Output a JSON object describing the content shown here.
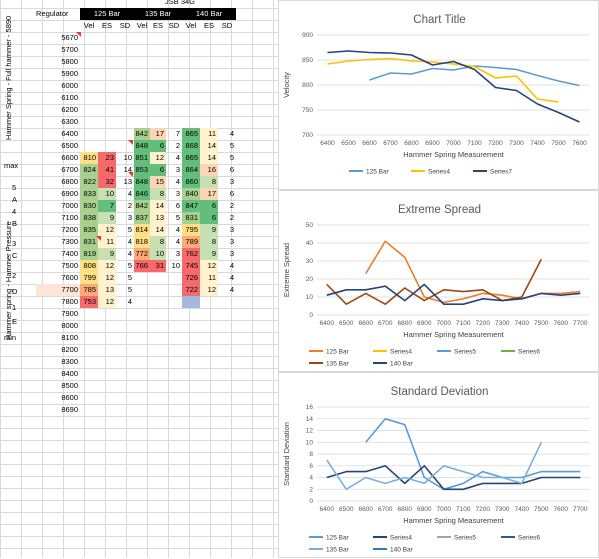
{
  "spreadsheet": {
    "header": {
      "regulator_label": "Regulator",
      "group_top": "JSB 34G",
      "groups": [
        "125 Bar",
        "135 Bar",
        "140 Bar"
      ],
      "subcols": [
        "Vel",
        "ES",
        "SD"
      ]
    },
    "side_labels": {
      "left_vertical": "Hammer spring - Hammer Pressure",
      "left_vertical2": "Hammer Spring - Full hammer - 5890",
      "markers": [
        "max",
        "5",
        "A",
        "4",
        "B",
        "3",
        "C",
        "2",
        "D",
        "1",
        "E",
        "min"
      ]
    },
    "rows": [
      {
        "rpm": "5670",
        "g1": [
          "",
          "",
          ""
        ],
        "g2": [
          "",
          "",
          ""
        ],
        "g3": [
          "",
          "",
          ""
        ]
      },
      {
        "rpm": "5700",
        "g1": [
          "",
          "",
          ""
        ],
        "g2": [
          "",
          "",
          ""
        ],
        "g3": [
          "",
          "",
          ""
        ]
      },
      {
        "rpm": "5800",
        "g1": [
          "",
          "",
          ""
        ],
        "g2": [
          "",
          "",
          ""
        ],
        "g3": [
          "",
          "",
          ""
        ]
      },
      {
        "rpm": "5900",
        "g1": [
          "",
          "",
          ""
        ],
        "g2": [
          "",
          "",
          ""
        ],
        "g3": [
          "",
          "",
          ""
        ]
      },
      {
        "rpm": "6000",
        "g1": [
          "",
          "",
          ""
        ],
        "g2": [
          "",
          "",
          ""
        ],
        "g3": [
          "",
          "",
          ""
        ]
      },
      {
        "rpm": "6100",
        "g1": [
          "",
          "",
          ""
        ],
        "g2": [
          "",
          "",
          ""
        ],
        "g3": [
          "",
          "",
          ""
        ]
      },
      {
        "rpm": "6200",
        "g1": [
          "",
          "",
          ""
        ],
        "g2": [
          "",
          "",
          ""
        ],
        "g3": [
          "",
          "",
          ""
        ]
      },
      {
        "rpm": "6300",
        "g1": [
          "",
          "",
          ""
        ],
        "g2": [
          "",
          "",
          ""
        ],
        "g3": [
          "",
          "",
          ""
        ]
      },
      {
        "rpm": "6400",
        "g1": [
          "",
          "",
          ""
        ],
        "g2": [
          "842",
          "17",
          "7"
        ],
        "g3": [
          "865",
          "11",
          "4"
        ]
      },
      {
        "rpm": "6500",
        "g1": [
          "",
          "",
          ""
        ],
        "g2": [
          "848",
          "6",
          "2"
        ],
        "g3": [
          "868",
          "14",
          "5"
        ]
      },
      {
        "rpm": "6600",
        "g1": [
          "810",
          "23",
          "10"
        ],
        "g2": [
          "851",
          "12",
          "4"
        ],
        "g3": [
          "865",
          "14",
          "5"
        ]
      },
      {
        "rpm": "6700",
        "g1": [
          "824",
          "41",
          "14"
        ],
        "g2": [
          "853",
          "6",
          "3"
        ],
        "g3": [
          "864",
          "16",
          "6"
        ]
      },
      {
        "rpm": "6800",
        "g1": [
          "822",
          "32",
          "13"
        ],
        "g2": [
          "848",
          "15",
          "4"
        ],
        "g3": [
          "860",
          "8",
          "3"
        ]
      },
      {
        "rpm": "6900",
        "g1": [
          "833",
          "10",
          "4"
        ],
        "g2": [
          "846",
          "8",
          "3"
        ],
        "g3": [
          "840",
          "17",
          "6"
        ]
      },
      {
        "rpm": "7000",
        "g1": [
          "830",
          "7",
          "2"
        ],
        "g2": [
          "842",
          "14",
          "6"
        ],
        "g3": [
          "847",
          "6",
          "2"
        ]
      },
      {
        "rpm": "7100",
        "g1": [
          "838",
          "9",
          "3"
        ],
        "g2": [
          "837",
          "13",
          "5"
        ],
        "g3": [
          "831",
          "6",
          "2"
        ]
      },
      {
        "rpm": "7200",
        "g1": [
          "835",
          "12",
          "5"
        ],
        "g2": [
          "814",
          "14",
          "4"
        ],
        "g3": [
          "795",
          "9",
          "3"
        ]
      },
      {
        "rpm": "7300",
        "g1": [
          "831",
          "11",
          "4"
        ],
        "g2": [
          "818",
          "8",
          "4"
        ],
        "g3": [
          "789",
          "8",
          "3"
        ]
      },
      {
        "rpm": "7400",
        "g1": [
          "819",
          "9",
          "4"
        ],
        "g2": [
          "772",
          "10",
          "3"
        ],
        "g3": [
          "762",
          "9",
          "3"
        ]
      },
      {
        "rpm": "7500",
        "g1": [
          "808",
          "12",
          "5"
        ],
        "g2": [
          "766",
          "31",
          "10"
        ],
        "g3": [
          "745",
          "12",
          "4"
        ]
      },
      {
        "rpm": "7600",
        "g1": [
          "799",
          "12",
          "5"
        ],
        "g2": [
          "",
          "",
          ""
        ],
        "g3": [
          "726",
          "11",
          "4"
        ]
      },
      {
        "rpm": "7700",
        "g1": [
          "785",
          "13",
          "5"
        ],
        "g2": [
          "",
          "",
          ""
        ],
        "g3": [
          "722",
          "12",
          "4"
        ]
      },
      {
        "rpm": "7800",
        "g1": [
          "753",
          "12",
          "4"
        ],
        "g2": [
          "",
          "",
          ""
        ],
        "g3": [
          "",
          "",
          ""
        ]
      },
      {
        "rpm": "7900",
        "g1": [
          "",
          "",
          ""
        ],
        "g2": [
          "",
          "",
          ""
        ],
        "g3": [
          "",
          "",
          ""
        ]
      },
      {
        "rpm": "8000",
        "g1": [
          "",
          "",
          ""
        ],
        "g2": [
          "",
          "",
          ""
        ],
        "g3": [
          "",
          "",
          ""
        ]
      },
      {
        "rpm": "8100",
        "g1": [
          "",
          "",
          ""
        ],
        "g2": [
          "",
          "",
          ""
        ],
        "g3": [
          "",
          "",
          ""
        ]
      },
      {
        "rpm": "8200",
        "g1": [
          "",
          "",
          ""
        ],
        "g2": [
          "",
          "",
          ""
        ],
        "g3": [
          "",
          "",
          ""
        ]
      },
      {
        "rpm": "8300",
        "g1": [
          "",
          "",
          ""
        ],
        "g2": [
          "",
          "",
          ""
        ],
        "g3": [
          "",
          "",
          ""
        ]
      },
      {
        "rpm": "8400",
        "g1": [
          "",
          "",
          ""
        ],
        "g2": [
          "",
          "",
          ""
        ],
        "g3": [
          "",
          "",
          ""
        ]
      },
      {
        "rpm": "8500",
        "g1": [
          "",
          "",
          ""
        ],
        "g2": [
          "",
          "",
          ""
        ],
        "g3": [
          "",
          "",
          ""
        ]
      },
      {
        "rpm": "8600",
        "g1": [
          "",
          "",
          ""
        ],
        "g2": [
          "",
          "",
          ""
        ],
        "g3": [
          "",
          "",
          ""
        ]
      },
      {
        "rpm": "8690",
        "g1": [
          "",
          "",
          ""
        ],
        "g2": [
          "",
          "",
          ""
        ],
        "g3": [
          "",
          "",
          ""
        ]
      }
    ],
    "colors": {
      "green": "#63be7b",
      "lightgreen": "#a9d08e",
      "yellow": "#ffe084",
      "orange": "#fcaa78",
      "red": "#f8696b",
      "pink": "#fbd0d1",
      "blue": "#a4b8e0"
    }
  },
  "chart_data": [
    {
      "type": "line",
      "title": "Chart Title",
      "xlabel": "Hammer Spring Measurement",
      "ylabel": "Velocity",
      "x": [
        6400,
        6500,
        6600,
        6700,
        6800,
        6900,
        7000,
        7100,
        7200,
        7300,
        7400,
        7500,
        7600
      ],
      "ylim": [
        700,
        900
      ],
      "yticks": [
        700,
        750,
        800,
        850,
        900
      ],
      "series": [
        {
          "name": "125 Bar",
          "color": "#5b9bd5",
          "values": [
            null,
            null,
            810,
            824,
            822,
            833,
            830,
            838,
            835,
            831,
            819,
            808,
            799
          ]
        },
        {
          "name": "Series4",
          "color": "#ffc000",
          "values": [
            842,
            848,
            851,
            853,
            848,
            846,
            842,
            837,
            814,
            818,
            772,
            766,
            null
          ]
        },
        {
          "name": "Series7",
          "color": "#264478",
          "values": [
            865,
            868,
            865,
            864,
            860,
            840,
            847,
            831,
            795,
            789,
            762,
            745,
            726
          ]
        }
      ]
    },
    {
      "type": "line",
      "title": "Extreme Spread",
      "xlabel": "Hammer Spring Measurement",
      "ylabel": "Extreme Spread",
      "x": [
        6400,
        6500,
        6600,
        6700,
        6800,
        6900,
        7000,
        7100,
        7200,
        7300,
        7400,
        7500,
        7600,
        7700
      ],
      "ylim": [
        0,
        50
      ],
      "yticks": [
        0,
        10,
        20,
        30,
        40,
        50
      ],
      "series": [
        {
          "name": "125 Bar",
          "color": "#ed7d31",
          "values": [
            null,
            null,
            23,
            41,
            32,
            10,
            7,
            9,
            12,
            11,
            9,
            12,
            12,
            13
          ]
        },
        {
          "name": "Series4",
          "color": "#ffc000",
          "values": [
            null,
            null,
            null,
            null,
            null,
            null,
            null,
            null,
            null,
            null,
            null,
            null,
            null,
            null
          ]
        },
        {
          "name": "Series5",
          "color": "#5b9bd5",
          "values": [
            null,
            null,
            null,
            null,
            null,
            null,
            null,
            null,
            null,
            null,
            null,
            null,
            null,
            null
          ]
        },
        {
          "name": "Series6",
          "color": "#70ad47",
          "values": [
            null,
            null,
            null,
            null,
            null,
            null,
            null,
            null,
            null,
            null,
            null,
            null,
            null,
            null
          ]
        },
        {
          "name": "135 Bar",
          "color": "#9e480e",
          "values": [
            17,
            6,
            12,
            6,
            15,
            8,
            14,
            13,
            14,
            8,
            10,
            31,
            null,
            null
          ]
        },
        {
          "name": "140 Bar",
          "color": "#264478",
          "values": [
            11,
            14,
            14,
            16,
            8,
            17,
            6,
            6,
            9,
            8,
            9,
            12,
            11,
            12
          ]
        }
      ]
    },
    {
      "type": "line",
      "title": "Standard Deviation",
      "xlabel": "Hammer Spring Measurement",
      "ylabel": "Standard Deviation",
      "x": [
        6400,
        6500,
        6600,
        6700,
        6800,
        6900,
        7000,
        7100,
        7200,
        7300,
        7400,
        7500,
        7600,
        7700
      ],
      "ylim": [
        0,
        16
      ],
      "yticks": [
        0,
        2,
        4,
        6,
        8,
        10,
        12,
        14,
        16
      ],
      "series": [
        {
          "name": "125 Bar",
          "color": "#5b9bd5",
          "values": [
            null,
            null,
            10,
            14,
            13,
            4,
            2,
            3,
            5,
            4,
            4,
            5,
            5,
            5
          ]
        },
        {
          "name": "Series4",
          "color": "#264478",
          "values": [
            4,
            5,
            5,
            6,
            3,
            6,
            2,
            2,
            3,
            3,
            3,
            4,
            4,
            4
          ]
        },
        {
          "name": "Series5",
          "color": "#a5a5a5",
          "values": [
            null,
            null,
            null,
            null,
            null,
            null,
            null,
            null,
            null,
            null,
            null,
            null,
            null,
            null
          ]
        },
        {
          "name": "Series6",
          "color": "#255e91",
          "values": [
            null,
            null,
            null,
            null,
            null,
            null,
            null,
            null,
            null,
            null,
            null,
            null,
            null,
            null
          ]
        },
        {
          "name": "135 Bar",
          "color": "#7cafdd",
          "values": [
            7,
            2,
            4,
            3,
            4,
            3,
            6,
            5,
            4,
            4,
            3,
            10,
            null,
            null
          ]
        },
        {
          "name": "140 Bar",
          "color": "#327dc2",
          "values": [
            null,
            null,
            null,
            null,
            null,
            null,
            null,
            null,
            null,
            null,
            null,
            null,
            null,
            null
          ]
        }
      ]
    }
  ]
}
